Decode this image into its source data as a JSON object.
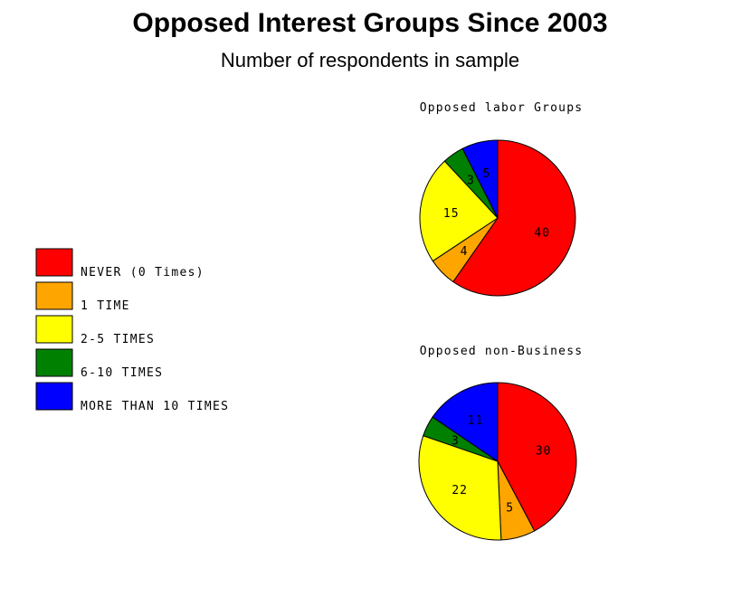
{
  "title": "Opposed Interest Groups Since 2003",
  "subtitle": "Number of respondents in sample",
  "colors": {
    "never": "#ff0000",
    "one": "#ffa500",
    "two_five": "#ffff00",
    "six_ten": "#008000",
    "more_ten": "#0000ff"
  },
  "legend": [
    {
      "label": "NEVER (0 Times)",
      "color": "#ff0000"
    },
    {
      "label": "1  TIME",
      "color": "#ffa500"
    },
    {
      "label": "2-5 TIMES",
      "color": "#ffff00"
    },
    {
      "label": "6-10 TIMES",
      "color": "#008000"
    },
    {
      "label": "MORE THAN 10 TIMES",
      "color": "#0000ff"
    }
  ],
  "chart_data": [
    {
      "type": "pie",
      "title": "Opposed labor Groups",
      "categories": [
        "NEVER (0 Times)",
        "1  TIME",
        "2-5 TIMES",
        "6-10 TIMES",
        "MORE THAN 10 TIMES"
      ],
      "values": [
        40,
        4,
        15,
        3,
        5
      ],
      "labels": [
        "40",
        "4",
        "15",
        "3",
        "5"
      ],
      "colors": [
        "#ff0000",
        "#ffa500",
        "#ffff00",
        "#008000",
        "#0000ff"
      ]
    },
    {
      "type": "pie",
      "title": "Opposed non-Business",
      "categories": [
        "NEVER (0 Times)",
        "1  TIME",
        "2-5 TIMES",
        "6-10 TIMES",
        "MORE THAN 10 TIMES"
      ],
      "values": [
        30,
        5,
        22,
        3,
        11
      ],
      "labels": [
        "30",
        "5",
        "22",
        "3",
        "11"
      ],
      "colors": [
        "#ff0000",
        "#ffa500",
        "#ffff00",
        "#008000",
        "#0000ff"
      ]
    }
  ]
}
